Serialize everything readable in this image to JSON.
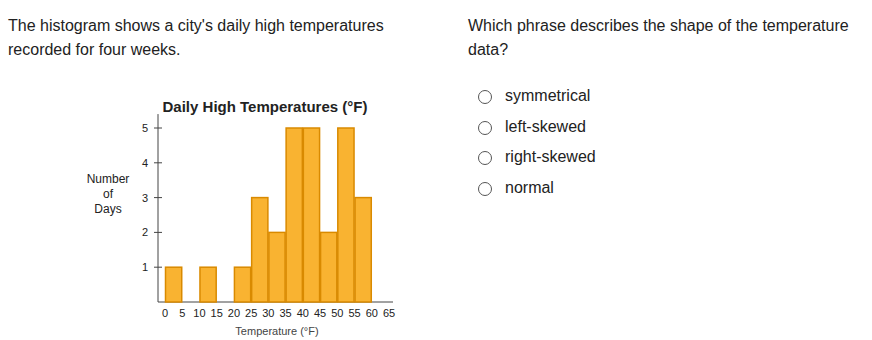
{
  "chart_data": {
    "type": "histogram",
    "title": "Daily High Temperatures (°F)",
    "x_label": "Temperature (°F)",
    "y_label": "Number of Days",
    "bins": [
      0,
      5,
      10,
      15,
      20,
      25,
      30,
      35,
      40,
      45,
      50,
      55,
      60,
      65
    ],
    "values": [
      1,
      0,
      1,
      0,
      1,
      3,
      2,
      5,
      5,
      2,
      5,
      3,
      0
    ],
    "color": "#f9b331",
    "xlim": [
      0,
      65
    ],
    "xticks": [
      0,
      5,
      10,
      15,
      20,
      25,
      30,
      35,
      40,
      45,
      50,
      55,
      60,
      65
    ],
    "ylim": [
      0,
      5.4
    ],
    "yticks": [
      1,
      2,
      3,
      4,
      5
    ],
    "grid": false
  },
  "page": {
    "intro": "The histogram shows a city's daily high temperatures recorded for four weeks.",
    "prompt": "Which phrase describes the shape of the temperature data?",
    "options": [
      "symmetrical",
      "left-skewed",
      "right-skewed",
      "normal"
    ]
  }
}
